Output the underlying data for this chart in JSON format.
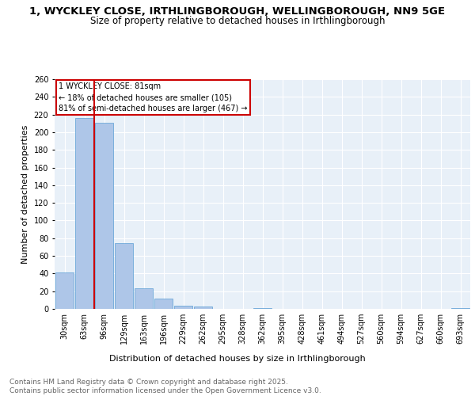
{
  "title_line1": "1, WYCKLEY CLOSE, IRTHLINGBOROUGH, WELLINGBOROUGH, NN9 5GE",
  "title_line2": "Size of property relative to detached houses in Irthlingborough",
  "xlabel": "Distribution of detached houses by size in Irthlingborough",
  "ylabel": "Number of detached properties",
  "categories": [
    "30sqm",
    "63sqm",
    "96sqm",
    "129sqm",
    "163sqm",
    "196sqm",
    "229sqm",
    "262sqm",
    "295sqm",
    "328sqm",
    "362sqm",
    "395sqm",
    "428sqm",
    "461sqm",
    "494sqm",
    "527sqm",
    "560sqm",
    "594sqm",
    "627sqm",
    "660sqm",
    "693sqm"
  ],
  "values": [
    41,
    216,
    211,
    74,
    23,
    12,
    4,
    3,
    0,
    0,
    1,
    0,
    0,
    0,
    0,
    0,
    0,
    0,
    0,
    0,
    1
  ],
  "bar_color": "#aec6e8",
  "bar_edge_color": "#5a9fd4",
  "property_line_bin_index": 1.5,
  "annotation_text": "1 WYCKLEY CLOSE: 81sqm\n← 18% of detached houses are smaller (105)\n81% of semi-detached houses are larger (467) →",
  "annotation_box_color": "#ffffff",
  "annotation_box_edge_color": "#cc0000",
  "vline_color": "#cc0000",
  "ylim": [
    0,
    260
  ],
  "yticks": [
    0,
    20,
    40,
    60,
    80,
    100,
    120,
    140,
    160,
    180,
    200,
    220,
    240,
    260
  ],
  "background_color": "#e8f0f8",
  "grid_color": "#ffffff",
  "footer_text": "Contains HM Land Registry data © Crown copyright and database right 2025.\nContains public sector information licensed under the Open Government Licence v3.0.",
  "title_fontsize": 9.5,
  "subtitle_fontsize": 8.5,
  "axis_label_fontsize": 8,
  "tick_fontsize": 7,
  "footer_fontsize": 6.5
}
